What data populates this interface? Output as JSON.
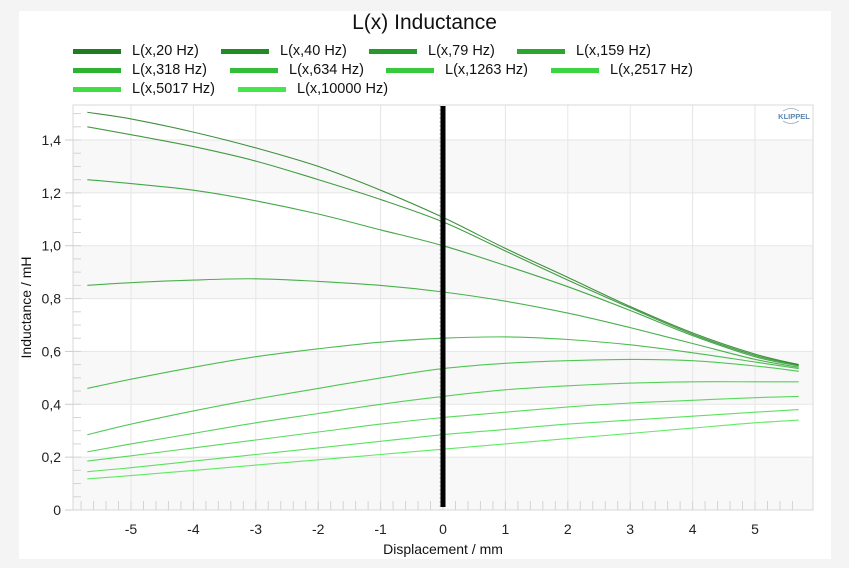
{
  "chart_data": {
    "type": "line",
    "title": "L(x) Inductance",
    "xlabel": "Displacement / mm",
    "ylabel": "Inductance / mH",
    "xlim": [
      -6.0,
      5.9
    ],
    "ylim": [
      0,
      1.53
    ],
    "x_ticks": [
      -5,
      -4,
      -3,
      -2,
      -1,
      0,
      1,
      2,
      3,
      4,
      5
    ],
    "x_tick_labels": [
      "-5",
      "-4",
      "-3",
      "-2",
      "-1",
      "0",
      "1",
      "2",
      "3",
      "4",
      "5"
    ],
    "y_ticks": [
      0,
      0.2,
      0.4,
      0.6,
      0.8,
      1.0,
      1.2,
      1.4
    ],
    "y_tick_labels": [
      "0",
      "0,2",
      "0,4",
      "0,6",
      "0,8",
      "1,0",
      "1,2",
      "1,4"
    ],
    "grid": true,
    "legend_position": "top",
    "watermark": "KLIPPEL",
    "marker_line_x": 0,
    "x": [
      -5.7,
      -5,
      -4,
      -3,
      -2,
      -1,
      0,
      1,
      2,
      3,
      4,
      5,
      5.7
    ],
    "series": [
      {
        "name": "L(x,20 Hz)",
        "color": "#1e7d1e",
        "values": [
          1.505,
          1.48,
          1.43,
          1.37,
          1.3,
          1.21,
          1.107,
          0.99,
          0.88,
          0.77,
          0.67,
          0.59,
          0.55
        ]
      },
      {
        "name": "L(x,40 Hz)",
        "color": "#228b22",
        "values": [
          1.45,
          1.42,
          1.375,
          1.32,
          1.25,
          1.175,
          1.09,
          0.98,
          0.87,
          0.765,
          0.665,
          0.585,
          0.548
        ]
      },
      {
        "name": "L(x,79 Hz)",
        "color": "#26992a",
        "values": [
          1.25,
          1.235,
          1.21,
          1.17,
          1.12,
          1.06,
          1.0,
          0.925,
          0.845,
          0.755,
          0.66,
          0.58,
          0.545
        ]
      },
      {
        "name": "L(x,159 Hz)",
        "color": "#2aa52e",
        "values": [
          0.85,
          0.86,
          0.87,
          0.875,
          0.865,
          0.85,
          0.825,
          0.79,
          0.745,
          0.69,
          0.63,
          0.57,
          0.54
        ]
      },
      {
        "name": "L(x,318 Hz)",
        "color": "#2eb232",
        "values": [
          0.46,
          0.495,
          0.54,
          0.58,
          0.61,
          0.635,
          0.65,
          0.655,
          0.645,
          0.625,
          0.595,
          0.56,
          0.535
        ]
      },
      {
        "name": "L(x,634 Hz)",
        "color": "#33bd38",
        "values": [
          0.285,
          0.325,
          0.375,
          0.42,
          0.46,
          0.5,
          0.535,
          0.555,
          0.565,
          0.57,
          0.565,
          0.545,
          0.525
        ]
      },
      {
        "name": "L(x,1263 Hz)",
        "color": "#38c93d",
        "values": [
          0.22,
          0.25,
          0.29,
          0.33,
          0.365,
          0.4,
          0.43,
          0.455,
          0.47,
          0.48,
          0.485,
          0.485,
          0.485
        ]
      },
      {
        "name": "L(x,2517 Hz)",
        "color": "#3dd442",
        "values": [
          0.185,
          0.205,
          0.235,
          0.265,
          0.295,
          0.325,
          0.35,
          0.37,
          0.39,
          0.405,
          0.415,
          0.425,
          0.43
        ]
      },
      {
        "name": "L(x,5017 Hz)",
        "color": "#40dd45",
        "values": [
          0.145,
          0.16,
          0.185,
          0.21,
          0.235,
          0.26,
          0.285,
          0.305,
          0.325,
          0.34,
          0.355,
          0.37,
          0.38
        ]
      },
      {
        "name": "L(x,10000 Hz)",
        "color": "#45e64a",
        "values": [
          0.118,
          0.13,
          0.15,
          0.17,
          0.19,
          0.21,
          0.23,
          0.25,
          0.27,
          0.29,
          0.31,
          0.33,
          0.34
        ]
      }
    ]
  }
}
